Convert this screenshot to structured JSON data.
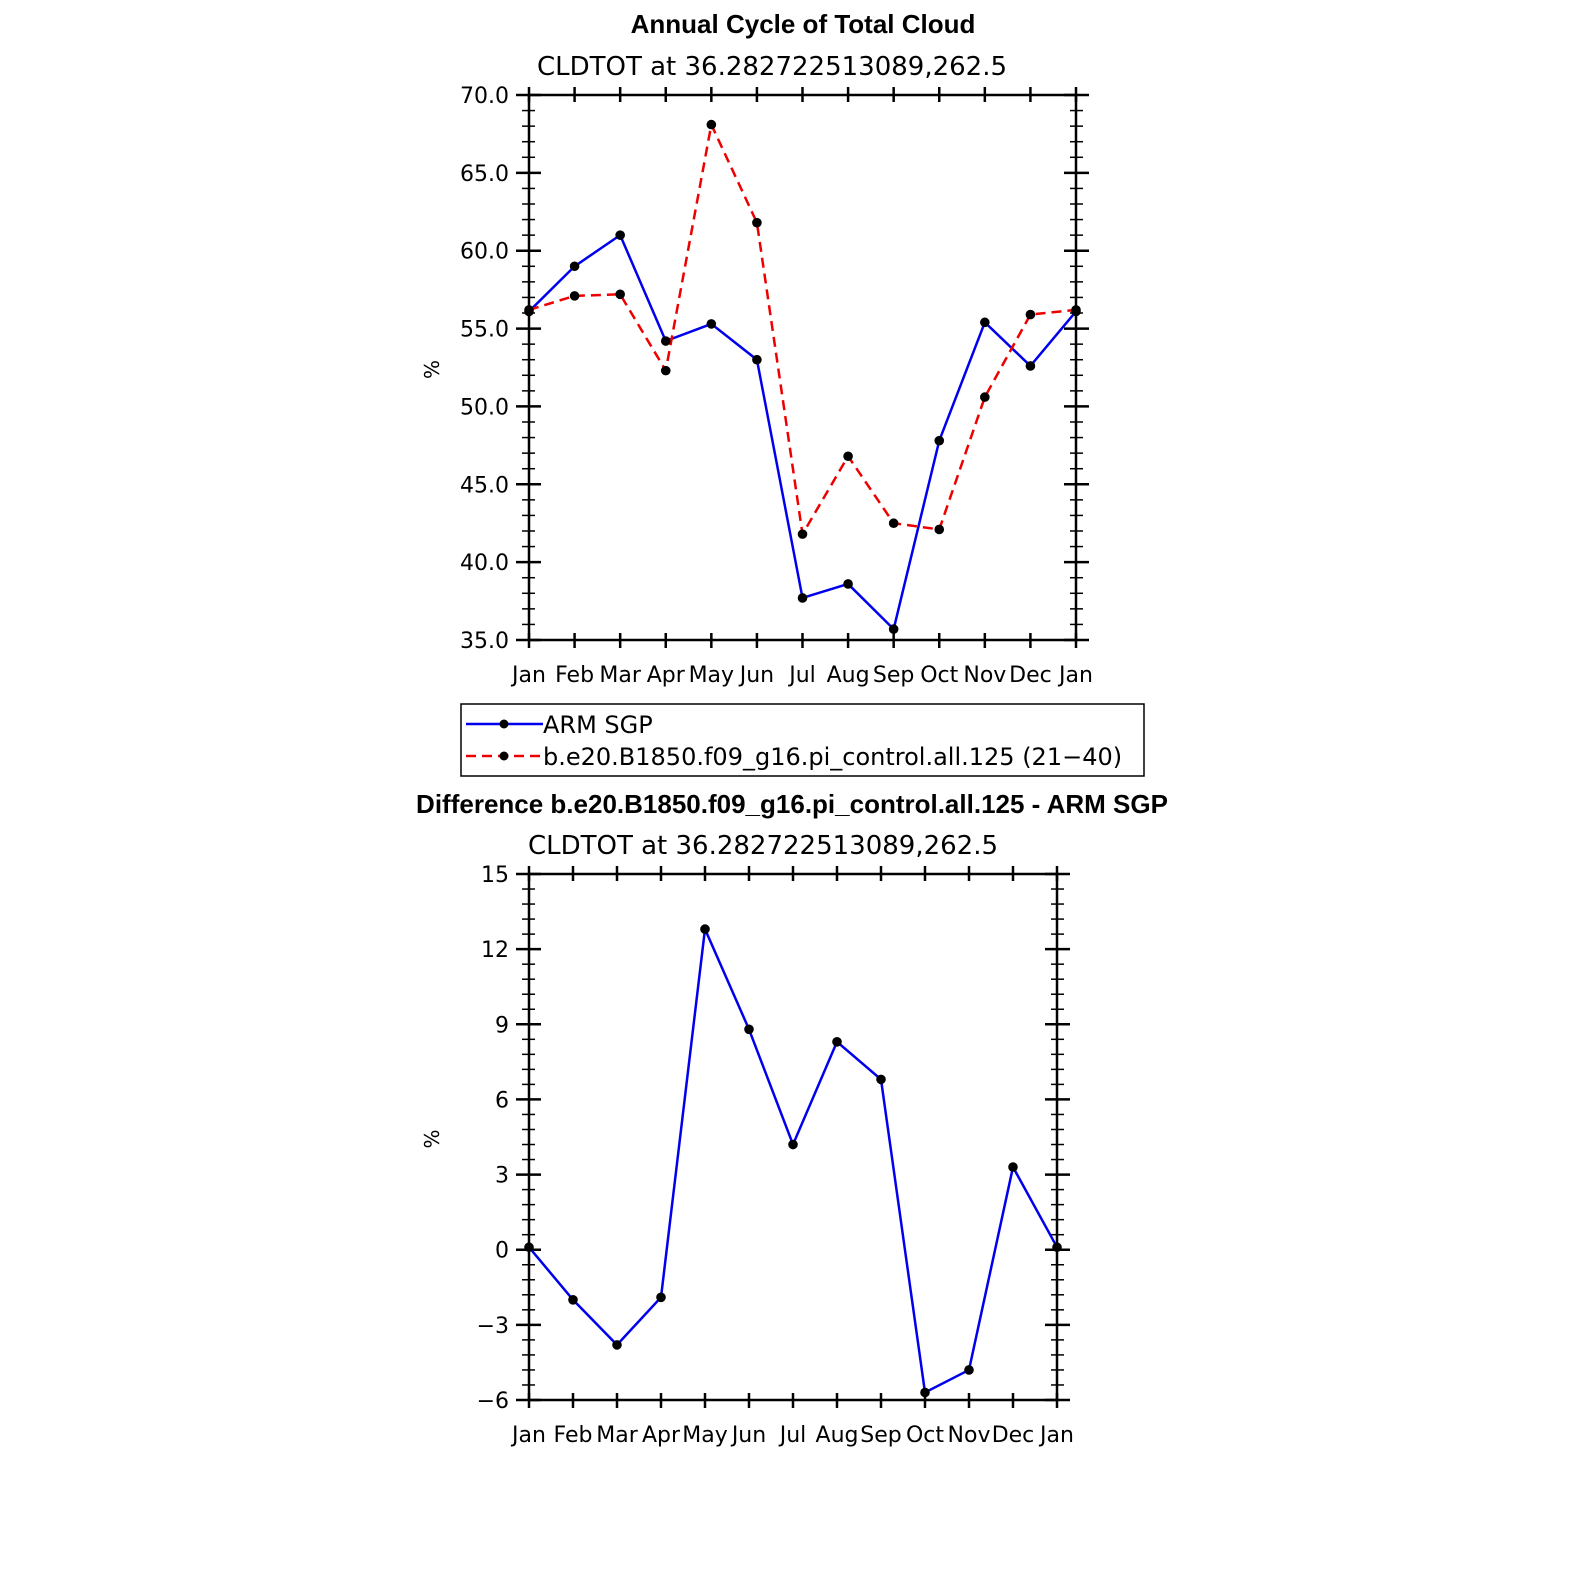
{
  "chart_data": [
    {
      "type": "line",
      "title": "Annual Cycle of Total Cloud",
      "subtitle": "CLDTOT at 36.282722513089,262.5",
      "ylabel": "%",
      "xlabel": "",
      "categories": [
        "Jan",
        "Feb",
        "Mar",
        "Apr",
        "May",
        "Jun",
        "Jul",
        "Aug",
        "Sep",
        "Oct",
        "Nov",
        "Dec",
        "Jan"
      ],
      "ylim": [
        35,
        70
      ],
      "yticks": [
        35,
        40,
        45,
        50,
        55,
        60,
        65,
        70
      ],
      "ytick_labels": [
        "35.0",
        "40.0",
        "45.0",
        "50.0",
        "55.0",
        "60.0",
        "65.0",
        "70.0"
      ],
      "series": [
        {
          "name": "ARM SGP",
          "color": "#0000ee",
          "dash": "solid",
          "values": [
            56.1,
            59.0,
            61.0,
            54.2,
            55.3,
            53.0,
            37.7,
            38.6,
            35.7,
            47.8,
            55.4,
            52.6,
            56.1
          ]
        },
        {
          "name": "b.e20.B1850.f09_g16.pi_control.all.125 (21−40)",
          "color": "#ee0000",
          "dash": "dashed",
          "values": [
            56.2,
            57.1,
            57.2,
            52.3,
            68.1,
            61.8,
            41.8,
            46.8,
            42.5,
            42.1,
            50.6,
            55.9,
            56.2
          ]
        }
      ],
      "legend": "below"
    },
    {
      "type": "line",
      "title": "Difference b.e20.B1850.f09_g16.pi_control.all.125 - ARM SGP",
      "subtitle": "CLDTOT at 36.282722513089,262.5",
      "ylabel": "%",
      "xlabel": "",
      "categories": [
        "Jan",
        "Feb",
        "Mar",
        "Apr",
        "May",
        "Jun",
        "Jul",
        "Aug",
        "Sep",
        "Oct",
        "Nov",
        "Dec",
        "Jan"
      ],
      "ylim": [
        -6,
        15
      ],
      "yticks": [
        -6,
        -3,
        0,
        3,
        6,
        9,
        12,
        15
      ],
      "ytick_labels": [
        "−6",
        "−3",
        "0",
        "3",
        "6",
        "9",
        "12",
        "15"
      ],
      "series": [
        {
          "name": "Difference",
          "color": "#0000ee",
          "dash": "solid",
          "values": [
            0.1,
            -2.0,
            -3.8,
            -1.9,
            12.8,
            8.8,
            4.2,
            8.3,
            6.8,
            -5.7,
            -4.8,
            3.3,
            0.1
          ]
        }
      ]
    }
  ]
}
